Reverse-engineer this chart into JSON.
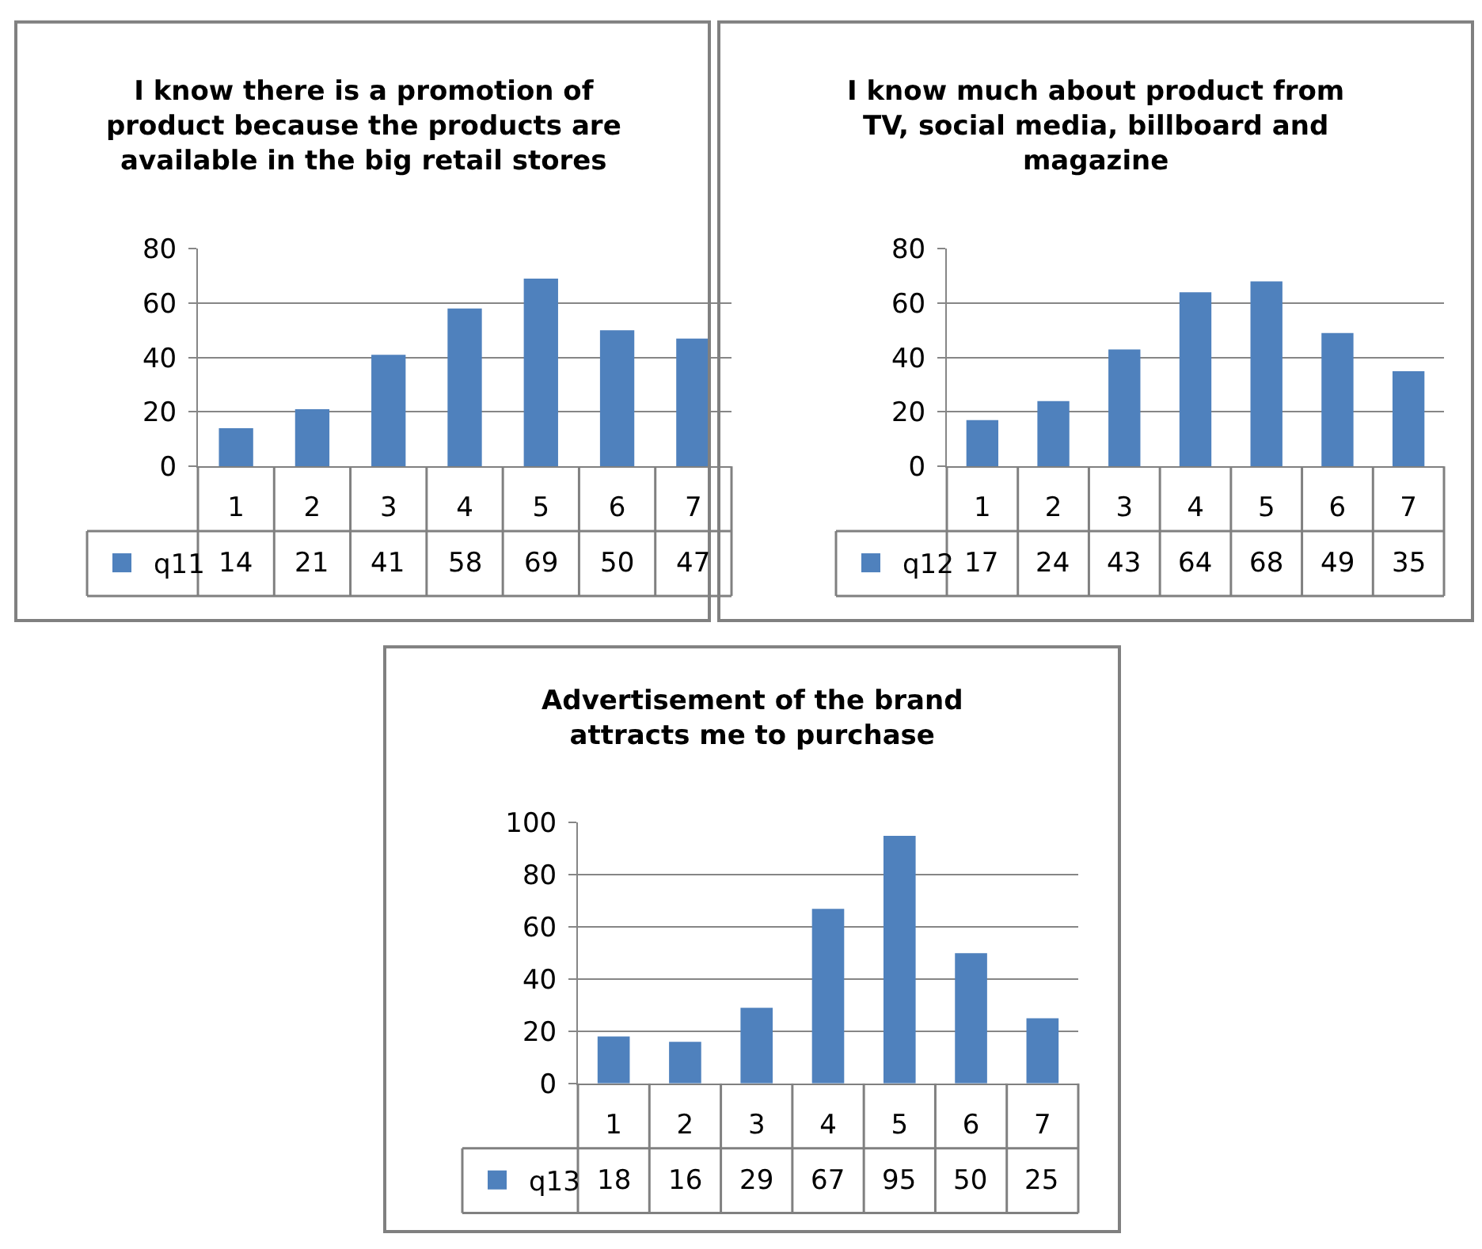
{
  "chart_data": [
    {
      "type": "bar",
      "title": "I know there is a promotion of product because the products are available in the big retail stores",
      "categories": [
        "1",
        "2",
        "3",
        "4",
        "5",
        "6",
        "7"
      ],
      "series": [
        {
          "name": "q11",
          "color": "#4f81bd",
          "values": [
            14,
            21,
            41,
            58,
            69,
            50,
            47
          ]
        }
      ],
      "ylim": [
        0,
        80
      ],
      "yticks": [
        0,
        20,
        40,
        60,
        80
      ],
      "grid": "y",
      "data_labels": true,
      "legend": "bottom left"
    },
    {
      "type": "bar",
      "title": "I know much about product from TV, social media, billboard and magazine",
      "categories": [
        "1",
        "2",
        "3",
        "4",
        "5",
        "6",
        "7"
      ],
      "series": [
        {
          "name": "q12",
          "color": "#4f81bd",
          "values": [
            17,
            24,
            43,
            64,
            68,
            49,
            35
          ]
        }
      ],
      "ylim": [
        0,
        80
      ],
      "yticks": [
        0,
        20,
        40,
        60,
        80
      ],
      "grid": "y",
      "data_labels": true,
      "legend": "bottom left"
    },
    {
      "type": "bar",
      "title": "Advertisement of the brand attracts me to purchase",
      "categories": [
        "1",
        "2",
        "3",
        "4",
        "5",
        "6",
        "7"
      ],
      "series": [
        {
          "name": "q13",
          "color": "#4f81bd",
          "values": [
            18,
            16,
            29,
            67,
            95,
            50,
            25
          ]
        }
      ],
      "ylim": [
        0,
        100
      ],
      "yticks": [
        0,
        20,
        40,
        60,
        80,
        100
      ],
      "grid": "y",
      "data_labels": true,
      "legend": "bottom left"
    }
  ]
}
